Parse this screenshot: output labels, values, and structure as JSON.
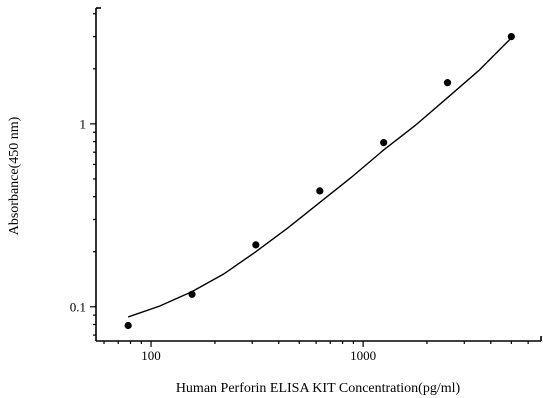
{
  "chart_data": {
    "type": "scatter",
    "title": "",
    "xlabel": "Human Perforin ELISA KIT Concentration(pg/ml)",
    "ylabel": "Absorbance(450 nm)",
    "x_scale": "log",
    "y_scale": "log",
    "xlim": [
      55,
      6900
    ],
    "ylim": [
      0.065,
      4.3
    ],
    "x_ticks": [
      100,
      1000
    ],
    "x_tick_labels": [
      "100",
      "1000"
    ],
    "y_ticks": [
      0.1,
      1
    ],
    "y_tick_labels": [
      "0.1",
      "1"
    ],
    "grid": false,
    "legend": "none",
    "series": [
      {
        "x": [
          78,
          156,
          312,
          625,
          1250,
          2500,
          5000
        ],
        "y": [
          0.079,
          0.117,
          0.218,
          0.43,
          0.79,
          1.68,
          3.0
        ]
      }
    ],
    "fit_curve": {
      "x": [
        78,
        110,
        156,
        220,
        312,
        440,
        625,
        880,
        1250,
        1760,
        2500,
        3500,
        5000
      ],
      "y": [
        0.088,
        0.101,
        0.121,
        0.151,
        0.2,
        0.269,
        0.372,
        0.51,
        0.72,
        0.98,
        1.39,
        1.95,
        2.95
      ]
    }
  }
}
